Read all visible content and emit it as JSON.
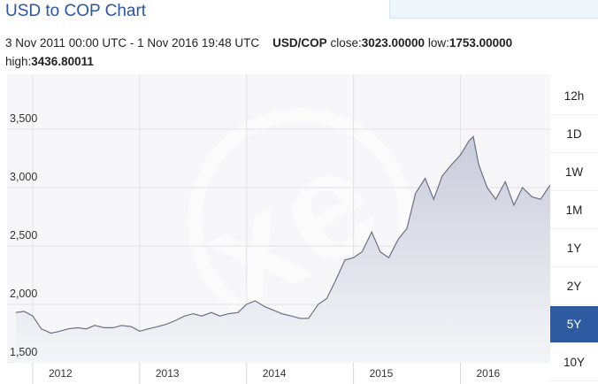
{
  "header": {
    "title": "USD to COP Chart"
  },
  "info": {
    "range": "3 Nov 2011 00:00 UTC - 1 Nov 2016 19:48 UTC",
    "pair": "USD/COP",
    "close_label": "close:",
    "close": "3023.00000",
    "low_label": "low:",
    "low": "1753.00000",
    "high_label": "high:",
    "high": "3436.80011"
  },
  "buttons": [
    "12h",
    "1D",
    "1W",
    "1M",
    "1Y",
    "2Y",
    "5Y",
    "10Y"
  ],
  "active_button": "5Y",
  "chart_data": {
    "type": "area",
    "color": "#6b6f85",
    "fill": "#dfe1ea",
    "x": [
      2011.84,
      2011.92,
      2012.0,
      2012.08,
      2012.17,
      2012.25,
      2012.33,
      2012.42,
      2012.5,
      2012.58,
      2012.67,
      2012.75,
      2012.83,
      2012.92,
      2013.0,
      2013.08,
      2013.17,
      2013.25,
      2013.33,
      2013.42,
      2013.5,
      2013.58,
      2013.67,
      2013.75,
      2013.83,
      2013.92,
      2014.0,
      2014.08,
      2014.17,
      2014.25,
      2014.33,
      2014.42,
      2014.5,
      2014.58,
      2014.67,
      2014.75,
      2014.83,
      2014.92,
      2015.0,
      2015.08,
      2015.17,
      2015.25,
      2015.33,
      2015.42,
      2015.5,
      2015.58,
      2015.67,
      2015.75,
      2015.83,
      2015.92,
      2016.0,
      2016.08,
      2016.12,
      2016.17,
      2016.25,
      2016.33,
      2016.42,
      2016.5,
      2016.58,
      2016.67,
      2016.75,
      2016.84
    ],
    "values": [
      1930,
      1940,
      1900,
      1790,
      1753,
      1770,
      1790,
      1800,
      1790,
      1820,
      1800,
      1800,
      1820,
      1810,
      1770,
      1790,
      1810,
      1830,
      1860,
      1900,
      1920,
      1900,
      1930,
      1900,
      1920,
      1930,
      2000,
      2030,
      1980,
      1950,
      1920,
      1900,
      1880,
      1880,
      2000,
      2050,
      2200,
      2380,
      2400,
      2450,
      2620,
      2450,
      2400,
      2560,
      2650,
      2950,
      3080,
      2900,
      3100,
      3200,
      3280,
      3400,
      3437,
      3200,
      3000,
      2900,
      3050,
      2850,
      3000,
      2920,
      2900,
      3023
    ],
    "xlim": [
      2011.76,
      2016.84
    ],
    "xticks": [
      2012,
      2013,
      2014,
      2015,
      2016
    ],
    "ylim": [
      1500,
      3970
    ],
    "yticks": [
      {
        "value": 1500,
        "label": "1,500"
      },
      {
        "value": 2000,
        "label": "2,000"
      },
      {
        "value": 2500,
        "label": "2,500"
      },
      {
        "value": 3000,
        "label": "3,000"
      },
      {
        "value": 3500,
        "label": "3,500"
      }
    ],
    "grid": true
  }
}
